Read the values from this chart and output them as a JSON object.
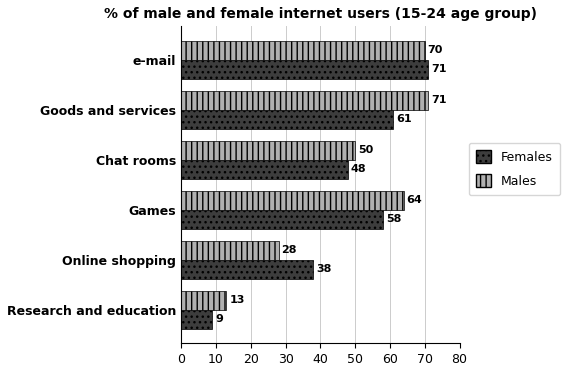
{
  "title": "% of male and female internet users (15-24 age group)",
  "categories": [
    "e-mail",
    "Goods and services",
    "Chat rooms",
    "Games",
    "Online shopping",
    "Research and education"
  ],
  "females": [
    71,
    61,
    48,
    58,
    38,
    9
  ],
  "males": [
    70,
    71,
    50,
    64,
    28,
    13
  ],
  "xlim": [
    0,
    80
  ],
  "xticks": [
    0,
    10,
    20,
    30,
    40,
    50,
    60,
    70,
    80
  ],
  "bar_height": 0.38,
  "legend_labels": [
    "Females",
    "Males"
  ],
  "title_fontsize": 10,
  "label_fontsize": 9,
  "tick_fontsize": 9,
  "value_fontsize": 8
}
